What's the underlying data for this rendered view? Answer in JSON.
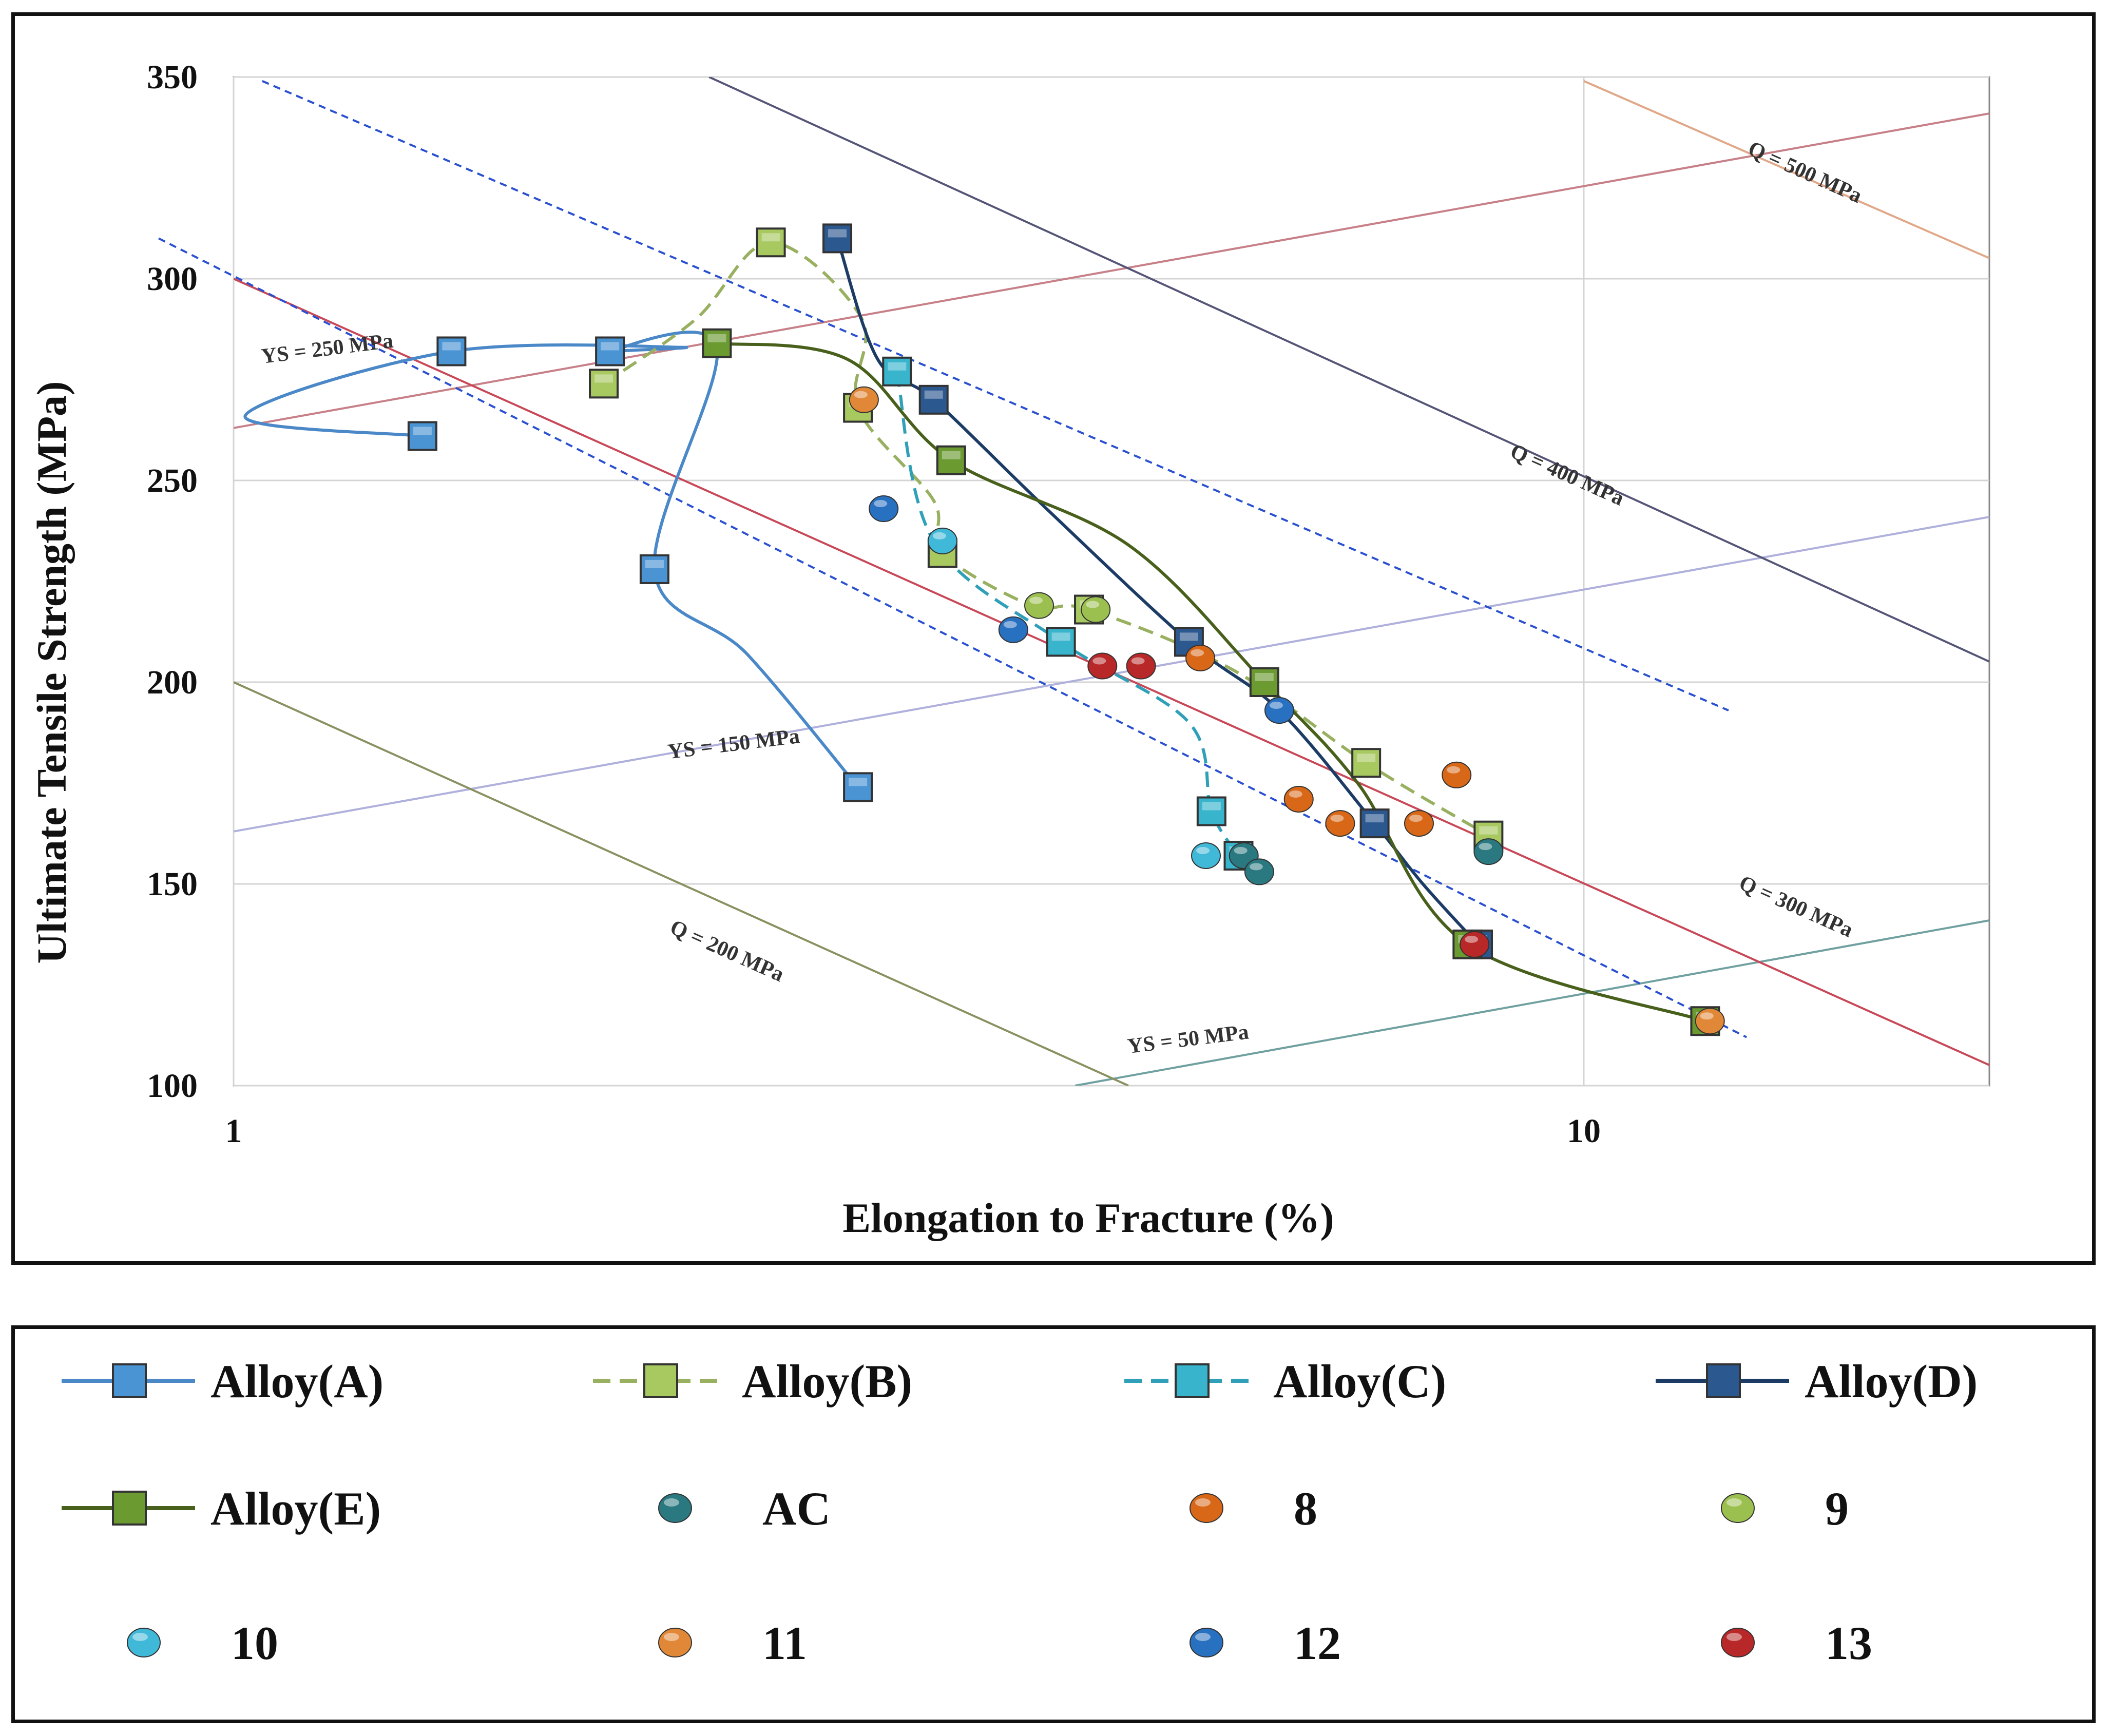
{
  "chart_data": {
    "type": "scatter",
    "title": "",
    "xlabel": "Elongation to Fracture (%)",
    "ylabel": "Ultimate Tensile Strength (MPa)",
    "xscale": "log",
    "xlim": [
      1,
      20
    ],
    "ylim": [
      100,
      350
    ],
    "x_ticks": [
      {
        "value": 1,
        "label": "1"
      },
      {
        "value": 10,
        "label": "10"
      }
    ],
    "y_ticks": [
      {
        "value": 100,
        "label": "100"
      },
      {
        "value": 150,
        "label": "150"
      },
      {
        "value": 200,
        "label": "200"
      },
      {
        "value": 250,
        "label": "250"
      },
      {
        "value": 300,
        "label": "300"
      },
      {
        "value": 350,
        "label": "350"
      }
    ],
    "grid": true,
    "reference_lines": [
      {
        "label": "YS = 250 MPa",
        "color": "#c88088",
        "points": [
          [
            1,
            263
          ],
          [
            20,
            341
          ]
        ]
      },
      {
        "label": "YS = 150 MPa",
        "color": "#b0b0dc",
        "points": [
          [
            1,
            163
          ],
          [
            20,
            241
          ]
        ]
      },
      {
        "label": "YS = 50 MPa",
        "color": "#70a0a0",
        "points": [
          [
            4.2,
            100
          ],
          [
            20,
            141
          ]
        ]
      },
      {
        "label": "Q = 200 MPa",
        "color": "#8a9060",
        "points": [
          [
            1,
            200
          ],
          [
            4.6,
            100
          ]
        ]
      },
      {
        "label": "Q = 300 MPa",
        "color": "#c84858",
        "points": [
          [
            1,
            300
          ],
          [
            20,
            105
          ]
        ]
      },
      {
        "label": "Q = 400 MPa",
        "color": "#555577",
        "points": [
          [
            2.25,
            350
          ],
          [
            20,
            205
          ]
        ]
      },
      {
        "label": "Q = 500 MPa",
        "color": "#e0a888",
        "points": [
          [
            10,
            349
          ],
          [
            20,
            305
          ]
        ]
      }
    ],
    "ref_label_positions": [
      {
        "label": "YS = 250 MPa",
        "x": 1.05,
        "y": 279,
        "angle": -7
      },
      {
        "label": "YS = 150 MPa",
        "x": 2.1,
        "y": 181,
        "angle": -7
      },
      {
        "label": "YS = 50 MPa",
        "x": 4.6,
        "y": 108,
        "angle": -7
      },
      {
        "label": "Q = 200 MPa",
        "x": 2.1,
        "y": 138,
        "angle": 24
      },
      {
        "label": "Q = 300 MPa",
        "x": 13,
        "y": 149,
        "angle": 24
      },
      {
        "label": "Q = 400 MPa",
        "x": 8.8,
        "y": 256,
        "angle": 24
      },
      {
        "label": "Q = 500 MPa",
        "x": 13.2,
        "y": 331,
        "angle": 24
      }
    ],
    "trend_lines": [
      {
        "style": "dashed",
        "color": "#2a50d0",
        "points": [
          [
            1.05,
            349
          ],
          [
            12.8,
            193
          ]
        ]
      },
      {
        "style": "dashed",
        "color": "#2a50d0",
        "points": [
          [
            0.88,
            310
          ],
          [
            13.2,
            112
          ]
        ]
      }
    ],
    "series": [
      {
        "name": "Alloy(A)",
        "color": "#4a88c8",
        "dash": "solid",
        "marker": "square",
        "marker_color": "#4a94d4",
        "points": [
          [
            1.38,
            261
          ],
          [
            1.02,
            266
          ],
          [
            1.45,
            282
          ],
          [
            2.15,
            283
          ],
          [
            1.9,
            282
          ],
          [
            2.28,
            283
          ],
          [
            2.05,
            228
          ],
          [
            2.4,
            207
          ],
          [
            2.9,
            174
          ]
        ]
      },
      {
        "name": "Alloy(B)",
        "color": "#98b060",
        "dash": "dashed",
        "marker": "square",
        "marker_color": "#a8c860",
        "points": [
          [
            1.88,
            274
          ],
          [
            2.2,
            290
          ],
          [
            2.5,
            309
          ],
          [
            2.92,
            290
          ],
          [
            2.9,
            268
          ],
          [
            3.3,
            245
          ],
          [
            3.35,
            232
          ],
          [
            3.9,
            219
          ],
          [
            4.3,
            218
          ],
          [
            5.5,
            203
          ],
          [
            6.9,
            180
          ],
          [
            8.5,
            162
          ]
        ]
      },
      {
        "name": "Alloy(C)",
        "color": "#30a0b8",
        "dash": "dashed",
        "marker": "square",
        "marker_color": "#38b4cc",
        "points": [
          [
            3.1,
            277
          ],
          [
            3.3,
            235
          ],
          [
            4.1,
            210
          ],
          [
            5.1,
            190
          ],
          [
            5.3,
            168
          ],
          [
            5.55,
            157
          ]
        ]
      },
      {
        "name": "Alloy(D)",
        "color": "#1c3c66",
        "dash": "solid",
        "marker": "square",
        "marker_color": "#2c5890",
        "points": [
          [
            2.8,
            310
          ],
          [
            3.0,
            280
          ],
          [
            3.3,
            270
          ],
          [
            4.0,
            243
          ],
          [
            5.1,
            210
          ],
          [
            5.95,
            193
          ],
          [
            7.0,
            165
          ],
          [
            7.6,
            150
          ],
          [
            8.35,
            135
          ]
        ]
      },
      {
        "name": "Alloy(E)",
        "color": "#48601c",
        "dash": "solid",
        "marker": "square",
        "marker_color": "#6a9a30",
        "points": [
          [
            2.28,
            284
          ],
          [
            2.85,
            280
          ],
          [
            3.4,
            255
          ],
          [
            4.6,
            234
          ],
          [
            5.8,
            200
          ],
          [
            6.8,
            175
          ],
          [
            8.2,
            135
          ],
          [
            12.3,
            116
          ]
        ]
      },
      {
        "name": "AC",
        "marker": "circle",
        "marker_color": "#2a7880",
        "points": [
          [
            8.5,
            158
          ],
          [
            5.6,
            157
          ],
          [
            5.75,
            153
          ]
        ]
      },
      {
        "name": "8",
        "marker": "circle",
        "marker_color": "#d86818",
        "points": [
          [
            5.2,
            206
          ],
          [
            6.15,
            171
          ],
          [
            6.6,
            165
          ],
          [
            7.55,
            165
          ],
          [
            8.05,
            177
          ]
        ]
      },
      {
        "name": "9",
        "marker": "circle",
        "marker_color": "#9cc050",
        "points": [
          [
            3.95,
            219
          ],
          [
            4.35,
            218
          ]
        ]
      },
      {
        "name": "10",
        "marker": "circle",
        "marker_color": "#40b8d8",
        "points": [
          [
            3.35,
            235
          ],
          [
            5.25,
            157
          ]
        ]
      },
      {
        "name": "11",
        "marker": "circle",
        "marker_color": "#e08838",
        "points": [
          [
            2.93,
            270
          ],
          [
            12.4,
            116
          ]
        ]
      },
      {
        "name": "12",
        "marker": "circle",
        "marker_color": "#2870c0",
        "points": [
          [
            3.03,
            243
          ],
          [
            3.78,
            213
          ],
          [
            5.95,
            193
          ]
        ]
      },
      {
        "name": "13",
        "marker": "circle",
        "marker_color": "#b82828",
        "points": [
          [
            4.4,
            204
          ],
          [
            4.7,
            204
          ],
          [
            8.3,
            135
          ]
        ]
      }
    ]
  },
  "legend": {
    "items": [
      {
        "label": "Alloy(A)",
        "type": "line-marker",
        "color": "#4a88c8",
        "dash": "solid",
        "marker_color": "#4a94d4"
      },
      {
        "label": "Alloy(B)",
        "type": "line-marker",
        "color": "#98b060",
        "dash": "dashed",
        "marker_color": "#a8c860"
      },
      {
        "label": "Alloy(C)",
        "type": "line-marker",
        "color": "#30a0b8",
        "dash": "dashed",
        "marker_color": "#38b4cc"
      },
      {
        "label": "Alloy(D)",
        "type": "line-marker",
        "color": "#1c3c66",
        "dash": "solid",
        "marker_color": "#2c5890"
      },
      {
        "label": "Alloy(E)",
        "type": "line-marker",
        "color": "#48601c",
        "dash": "solid",
        "marker_color": "#6a9a30"
      },
      {
        "label": "AC",
        "type": "circle",
        "marker_color": "#2a7880"
      },
      {
        "label": "8",
        "type": "circle",
        "marker_color": "#d86818"
      },
      {
        "label": "9",
        "type": "circle",
        "marker_color": "#9cc050"
      },
      {
        "label": "10",
        "type": "circle",
        "marker_color": "#40b8d8"
      },
      {
        "label": "11",
        "type": "circle",
        "marker_color": "#e08838"
      },
      {
        "label": "12",
        "type": "circle",
        "marker_color": "#2870c0"
      },
      {
        "label": "13",
        "type": "circle",
        "marker_color": "#b82828"
      }
    ]
  }
}
